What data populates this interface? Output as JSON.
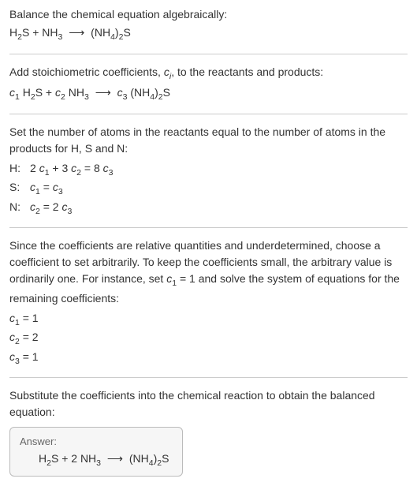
{
  "section1": {
    "intro": "Balance the chemical equation algebraically:",
    "formula_html": "H<sub>2</sub>S + NH<sub>3</sub> <span class='arrow'>⟶</span> (NH<sub>4</sub>)<sub>2</sub>S"
  },
  "section2": {
    "intro_html": "Add stoichiometric coefficients, <span class='italic'>c<sub>i</sub></span>, to the reactants and products:",
    "formula_html": "<span class='italic'>c</span><sub>1</sub> H<sub>2</sub>S + <span class='italic'>c</span><sub>2</sub> NH<sub>3</sub> <span class='arrow'>⟶</span> <span class='italic'>c</span><sub>3</sub> (NH<sub>4</sub>)<sub>2</sub>S"
  },
  "section3": {
    "intro": "Set the number of atoms in the reactants equal to the number of atoms in the products for H, S and N:",
    "equations": [
      {
        "label": "H:",
        "eq_html": "2 <span class='italic'>c</span><sub>1</sub> + 3 <span class='italic'>c</span><sub>2</sub> = 8 <span class='italic'>c</span><sub>3</sub>"
      },
      {
        "label": "S:",
        "eq_html": "<span class='italic'>c</span><sub>1</sub> = <span class='italic'>c</span><sub>3</sub>"
      },
      {
        "label": "N:",
        "eq_html": "<span class='italic'>c</span><sub>2</sub> = 2 <span class='italic'>c</span><sub>3</sub>"
      }
    ]
  },
  "section4": {
    "intro_html": "Since the coefficients are relative quantities and underdetermined, choose a coefficient to set arbitrarily. To keep the coefficients small, the arbitrary value is ordinarily one. For instance, set <span class='italic'>c</span><sub>1</sub> = 1 and solve the system of equations for the remaining coefficients:",
    "coefficients": [
      {
        "line_html": "<span class='italic'>c</span><sub>1</sub> = 1"
      },
      {
        "line_html": "<span class='italic'>c</span><sub>2</sub> = 2"
      },
      {
        "line_html": "<span class='italic'>c</span><sub>3</sub> = 1"
      }
    ]
  },
  "section5": {
    "intro": "Substitute the coefficients into the chemical reaction to obtain the balanced equation:",
    "answer_label": "Answer:",
    "answer_formula_html": "H<sub>2</sub>S + 2 NH<sub>3</sub> <span class='arrow'>⟶</span> (NH<sub>4</sub>)<sub>2</sub>S"
  },
  "colors": {
    "text": "#333333",
    "divider": "#cccccc",
    "box_border": "#bbbbbb",
    "box_bg": "#f6f6f6",
    "answer_label": "#666666",
    "background": "#ffffff"
  }
}
